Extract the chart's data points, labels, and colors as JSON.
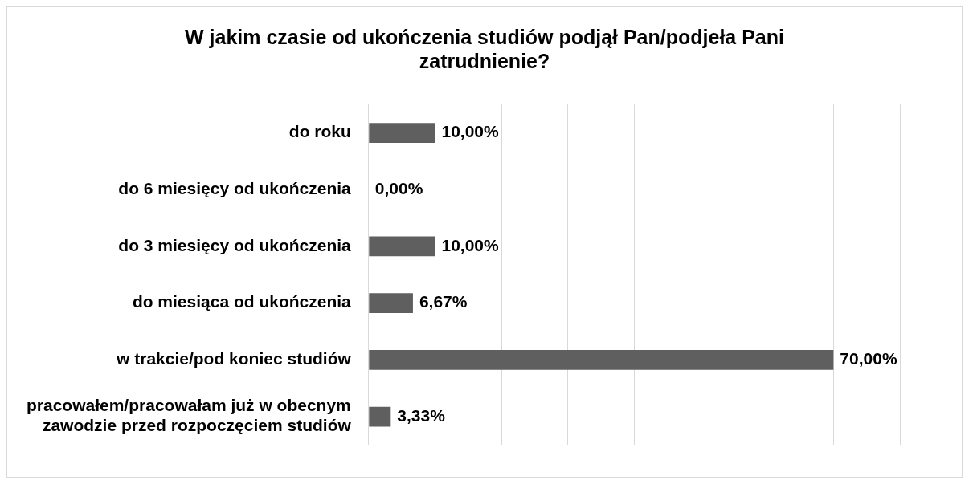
{
  "chart_data": {
    "type": "bar",
    "orientation": "horizontal",
    "title": "W jakim czasie od ukończenia studiów podjął Pan/podjeła Pani zatrudnienie?",
    "categories": [
      "do roku",
      "do 6 miesięcy od ukończenia",
      "do 3 miesięcy od ukończenia",
      "do miesiąca od ukończenia",
      "w trakcie/pod koniec studiów",
      "pracowałem/pracowałam już w obecnym zawodzie przed rozpoczęciem studiów"
    ],
    "values": [
      10,
      0,
      10,
      6.67,
      70,
      3.33
    ],
    "value_labels": [
      "10,00%",
      "0,00%",
      "10,00%",
      "6,67%",
      "70,00%",
      "3,33%"
    ],
    "color": "#5f5f5f",
    "xlim": [
      0,
      80
    ],
    "xticks": [
      {
        "value": 0,
        "label": null
      },
      {
        "value": 10,
        "label": null
      },
      {
        "value": 20,
        "label": null
      },
      {
        "value": 30,
        "label": null
      },
      {
        "value": 40,
        "label": null
      },
      {
        "value": 50,
        "label": null
      },
      {
        "value": 60,
        "label": null
      },
      {
        "value": 70,
        "label": null
      },
      {
        "value": 80,
        "label": null
      }
    ],
    "tick_labels": "y",
    "grid": "x"
  }
}
